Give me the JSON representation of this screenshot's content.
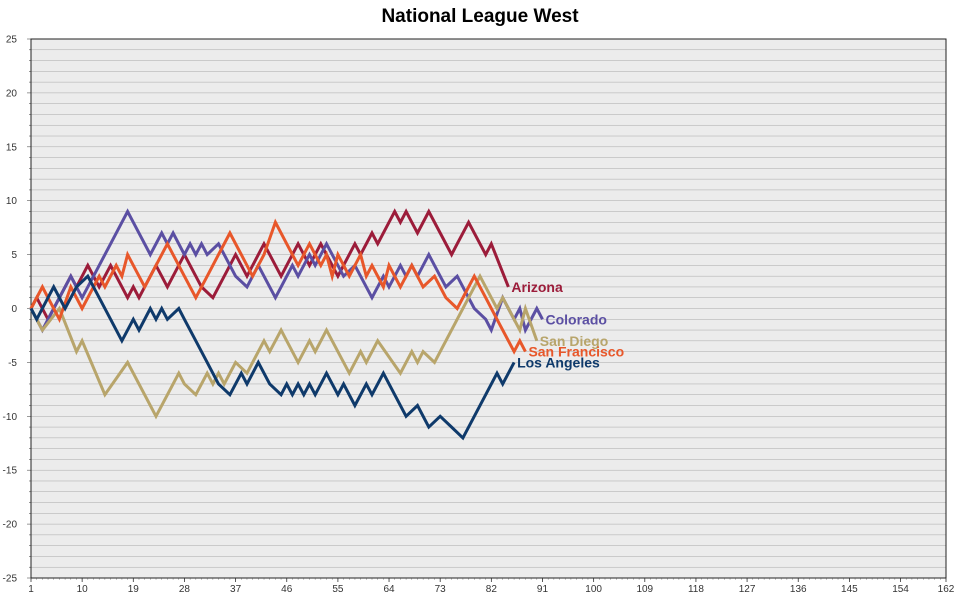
{
  "chart_data": {
    "type": "line",
    "title": "National League West",
    "xlabel": "",
    "ylabel": "",
    "xlim": [
      1,
      162
    ],
    "ylim": [
      -25,
      25
    ],
    "x_ticks": [
      1,
      10,
      19,
      28,
      37,
      46,
      55,
      64,
      73,
      82,
      91,
      100,
      109,
      118,
      127,
      136,
      145,
      154,
      162
    ],
    "y_ticks": [
      25,
      20,
      15,
      10,
      5,
      0,
      -5,
      -10,
      -15,
      -20,
      -25
    ],
    "grid": true,
    "series": [
      {
        "name": "Arizona",
        "color": "#9c1c3a",
        "points": [
          [
            1,
            0
          ],
          [
            2,
            1
          ],
          [
            4,
            -1
          ],
          [
            7,
            2
          ],
          [
            8,
            3
          ],
          [
            9,
            2
          ],
          [
            11,
            4
          ],
          [
            13,
            2
          ],
          [
            15,
            4
          ],
          [
            18,
            1
          ],
          [
            19,
            2
          ],
          [
            20,
            1
          ],
          [
            23,
            4
          ],
          [
            25,
            2
          ],
          [
            28,
            5
          ],
          [
            30,
            3
          ],
          [
            31,
            2
          ],
          [
            33,
            1
          ],
          [
            37,
            5
          ],
          [
            39,
            3
          ],
          [
            42,
            6
          ],
          [
            43,
            5
          ],
          [
            45,
            3
          ],
          [
            46,
            4
          ],
          [
            48,
            6
          ],
          [
            50,
            4
          ],
          [
            52,
            6
          ],
          [
            53,
            5
          ],
          [
            55,
            3
          ],
          [
            58,
            6
          ],
          [
            59,
            5
          ],
          [
            61,
            7
          ],
          [
            62,
            6
          ],
          [
            64,
            8
          ],
          [
            65,
            9
          ],
          [
            66,
            8
          ],
          [
            67,
            9
          ],
          [
            68,
            8
          ],
          [
            69,
            7
          ],
          [
            71,
            9
          ],
          [
            73,
            7
          ],
          [
            75,
            5
          ],
          [
            76,
            6
          ],
          [
            78,
            8
          ],
          [
            80,
            6
          ],
          [
            81,
            5
          ],
          [
            82,
            6
          ],
          [
            85,
            2
          ]
        ]
      },
      {
        "name": "Colorado",
        "color": "#5b4fa3",
        "points": [
          [
            1,
            0
          ],
          [
            3,
            -2
          ],
          [
            5,
            0
          ],
          [
            6,
            1
          ],
          [
            8,
            3
          ],
          [
            10,
            1
          ],
          [
            11,
            2
          ],
          [
            13,
            4
          ],
          [
            15,
            6
          ],
          [
            17,
            8
          ],
          [
            18,
            9
          ],
          [
            19,
            8
          ],
          [
            22,
            5
          ],
          [
            24,
            7
          ],
          [
            25,
            6
          ],
          [
            26,
            7
          ],
          [
            28,
            5
          ],
          [
            29,
            6
          ],
          [
            30,
            5
          ],
          [
            31,
            6
          ],
          [
            32,
            5
          ],
          [
            34,
            6
          ],
          [
            35,
            5
          ],
          [
            37,
            3
          ],
          [
            39,
            2
          ],
          [
            41,
            4
          ],
          [
            42,
            3
          ],
          [
            44,
            1
          ],
          [
            45,
            2
          ],
          [
            47,
            4
          ],
          [
            48,
            3
          ],
          [
            50,
            5
          ],
          [
            51,
            4
          ],
          [
            53,
            6
          ],
          [
            54,
            5
          ],
          [
            56,
            3
          ],
          [
            58,
            4
          ],
          [
            59,
            3
          ],
          [
            61,
            1
          ],
          [
            63,
            3
          ],
          [
            64,
            2
          ],
          [
            66,
            4
          ],
          [
            67,
            3
          ],
          [
            68,
            4
          ],
          [
            69,
            3
          ],
          [
            71,
            5
          ],
          [
            72,
            4
          ],
          [
            74,
            2
          ],
          [
            76,
            3
          ],
          [
            77,
            2
          ],
          [
            79,
            0
          ],
          [
            81,
            -1
          ],
          [
            82,
            -2
          ],
          [
            84,
            1
          ],
          [
            85,
            0
          ],
          [
            86,
            -1
          ],
          [
            87,
            0
          ],
          [
            88,
            -2
          ],
          [
            90,
            0
          ],
          [
            91,
            -1
          ]
        ]
      },
      {
        "name": "San Diego",
        "color": "#b8a56b",
        "points": [
          [
            1,
            0
          ],
          [
            3,
            -2
          ],
          [
            6,
            0
          ],
          [
            9,
            -4
          ],
          [
            10,
            -3
          ],
          [
            14,
            -8
          ],
          [
            18,
            -5
          ],
          [
            19,
            -6
          ],
          [
            23,
            -10
          ],
          [
            27,
            -6
          ],
          [
            28,
            -7
          ],
          [
            30,
            -8
          ],
          [
            32,
            -6
          ],
          [
            33,
            -7
          ],
          [
            34,
            -6
          ],
          [
            35,
            -7
          ],
          [
            37,
            -5
          ],
          [
            39,
            -6
          ],
          [
            40,
            -5
          ],
          [
            42,
            -3
          ],
          [
            43,
            -4
          ],
          [
            45,
            -2
          ],
          [
            46,
            -3
          ],
          [
            48,
            -5
          ],
          [
            50,
            -3
          ],
          [
            51,
            -4
          ],
          [
            53,
            -2
          ],
          [
            57,
            -6
          ],
          [
            59,
            -4
          ],
          [
            60,
            -5
          ],
          [
            62,
            -3
          ],
          [
            66,
            -6
          ],
          [
            68,
            -4
          ],
          [
            69,
            -5
          ],
          [
            70,
            -4
          ],
          [
            72,
            -5
          ],
          [
            76,
            -1
          ],
          [
            78,
            1
          ],
          [
            80,
            3
          ],
          [
            82,
            1
          ],
          [
            83,
            0
          ],
          [
            84,
            1
          ],
          [
            85,
            0
          ],
          [
            87,
            -2
          ],
          [
            88,
            0
          ],
          [
            90,
            -3
          ]
        ]
      },
      {
        "name": "San Francisco",
        "color": "#e8572a",
        "points": [
          [
            1,
            0
          ],
          [
            3,
            2
          ],
          [
            4,
            1
          ],
          [
            6,
            -1
          ],
          [
            8,
            2
          ],
          [
            10,
            0
          ],
          [
            13,
            3
          ],
          [
            14,
            2
          ],
          [
            16,
            4
          ],
          [
            17,
            3
          ],
          [
            18,
            5
          ],
          [
            21,
            2
          ],
          [
            23,
            4
          ],
          [
            25,
            6
          ],
          [
            28,
            3
          ],
          [
            30,
            1
          ],
          [
            32,
            3
          ],
          [
            34,
            5
          ],
          [
            36,
            7
          ],
          [
            38,
            5
          ],
          [
            40,
            3
          ],
          [
            42,
            5
          ],
          [
            44,
            8
          ],
          [
            46,
            6
          ],
          [
            48,
            4
          ],
          [
            50,
            6
          ],
          [
            52,
            4
          ],
          [
            53,
            5
          ],
          [
            54,
            3
          ],
          [
            55,
            5
          ],
          [
            57,
            3
          ],
          [
            59,
            5
          ],
          [
            60,
            3
          ],
          [
            61,
            4
          ],
          [
            63,
            2
          ],
          [
            64,
            4
          ],
          [
            65,
            3
          ],
          [
            66,
            2
          ],
          [
            68,
            4
          ],
          [
            70,
            2
          ],
          [
            72,
            3
          ],
          [
            74,
            1
          ],
          [
            76,
            0
          ],
          [
            79,
            3
          ],
          [
            81,
            1
          ],
          [
            83,
            -1
          ],
          [
            86,
            -4
          ],
          [
            87,
            -3
          ],
          [
            88,
            -4
          ]
        ]
      },
      {
        "name": "Los Angeles",
        "color": "#0f3a6b",
        "points": [
          [
            1,
            0
          ],
          [
            2,
            -1
          ],
          [
            4,
            1
          ],
          [
            5,
            2
          ],
          [
            7,
            0
          ],
          [
            9,
            2
          ],
          [
            11,
            3
          ],
          [
            13,
            1
          ],
          [
            15,
            -1
          ],
          [
            17,
            -3
          ],
          [
            19,
            -1
          ],
          [
            20,
            -2
          ],
          [
            22,
            0
          ],
          [
            23,
            -1
          ],
          [
            24,
            0
          ],
          [
            25,
            -1
          ],
          [
            27,
            0
          ],
          [
            28,
            -1
          ],
          [
            30,
            -3
          ],
          [
            32,
            -5
          ],
          [
            34,
            -7
          ],
          [
            36,
            -8
          ],
          [
            38,
            -6
          ],
          [
            39,
            -7
          ],
          [
            41,
            -5
          ],
          [
            43,
            -7
          ],
          [
            45,
            -8
          ],
          [
            46,
            -7
          ],
          [
            47,
            -8
          ],
          [
            48,
            -7
          ],
          [
            49,
            -8
          ],
          [
            50,
            -7
          ],
          [
            51,
            -8
          ],
          [
            53,
            -6
          ],
          [
            55,
            -8
          ],
          [
            56,
            -7
          ],
          [
            58,
            -9
          ],
          [
            60,
            -7
          ],
          [
            61,
            -8
          ],
          [
            63,
            -6
          ],
          [
            65,
            -8
          ],
          [
            67,
            -10
          ],
          [
            69,
            -9
          ],
          [
            71,
            -11
          ],
          [
            73,
            -10
          ],
          [
            75,
            -11
          ],
          [
            77,
            -12
          ],
          [
            79,
            -10
          ],
          [
            81,
            -8
          ],
          [
            83,
            -6
          ],
          [
            84,
            -7
          ],
          [
            86,
            -5
          ]
        ]
      }
    ]
  }
}
